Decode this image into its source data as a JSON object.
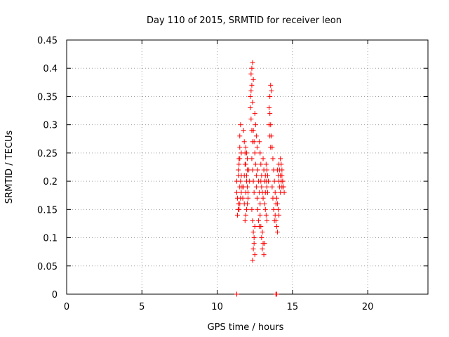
{
  "chart_data": {
    "type": "scatter",
    "title": "Day 110 of 2015, SRMTID for receiver leon",
    "xlabel": "GPS time / hours",
    "ylabel": "SRMTID / TECUs",
    "xlim": [
      0,
      24
    ],
    "ylim": [
      0,
      0.45
    ],
    "xticks": [
      0,
      5,
      10,
      15,
      20
    ],
    "xtick_labels": [
      "0",
      "5",
      "10",
      "15",
      "20"
    ],
    "yticks": [
      0,
      0.05,
      0.1,
      0.15,
      0.2,
      0.25,
      0.3,
      0.35,
      0.4,
      0.45
    ],
    "ytick_labels": [
      "0",
      "0.05",
      "0.1",
      "0.15",
      "0.2",
      "0.25",
      "0.3",
      "0.35",
      "0.4",
      "0.45"
    ],
    "grid": true,
    "marker": "+",
    "color": "#ff0000",
    "series": [
      {
        "name": "SRMTID",
        "x": [
          11.3,
          11.35,
          11.4,
          11.45,
          11.3,
          11.4,
          11.5,
          11.55,
          11.6,
          11.4,
          11.45,
          11.5,
          11.35,
          11.4,
          11.5,
          11.55,
          11.6,
          11.65,
          11.5,
          11.55,
          11.6,
          11.45,
          11.5,
          11.7,
          11.75,
          11.8,
          11.85,
          11.8,
          11.9,
          11.95,
          12.0,
          11.75,
          11.8,
          11.85,
          11.9,
          11.95,
          12.0,
          12.05,
          11.85,
          11.9,
          11.95,
          12.0,
          12.05,
          11.9,
          11.95,
          12.0,
          12.1,
          12.15,
          12.2,
          12.25,
          12.3,
          12.35,
          12.25,
          12.3,
          12.35,
          12.4,
          12.2,
          12.25,
          12.3,
          12.35,
          12.3,
          12.35,
          12.4,
          12.45,
          12.3,
          12.35,
          12.4,
          12.45,
          12.5,
          12.35,
          12.4,
          12.45,
          12.5,
          12.4,
          12.45,
          12.5,
          12.55,
          12.6,
          12.5,
          12.55,
          12.6,
          12.65,
          12.6,
          12.65,
          12.7,
          12.75,
          12.8,
          12.7,
          12.75,
          12.8,
          12.85,
          12.8,
          12.85,
          12.9,
          12.95,
          12.85,
          12.9,
          12.95,
          13.0,
          12.9,
          12.95,
          13.0,
          13.05,
          13.0,
          13.05,
          13.1,
          13.15,
          13.05,
          13.1,
          13.15,
          13.2,
          13.15,
          13.2,
          13.25,
          13.3,
          13.2,
          13.25,
          13.3,
          13.35,
          13.25,
          13.3,
          13.35,
          13.4,
          13.45,
          13.5,
          13.55,
          13.45,
          13.5,
          13.55,
          13.6,
          13.5,
          13.55,
          13.6,
          13.65,
          13.7,
          13.65,
          13.7,
          13.75,
          13.8,
          13.75,
          13.8,
          13.85,
          13.9,
          13.85,
          13.9,
          13.95,
          14.0,
          13.95,
          14.0,
          14.05,
          14.1,
          14.0,
          14.05,
          14.1,
          14.15,
          14.2,
          14.1,
          14.15,
          14.2,
          14.25,
          14.3,
          14.2,
          14.25,
          14.3,
          14.35,
          14.4,
          14.3,
          14.35,
          14.4,
          14.45,
          11.3,
          13.9,
          13.95
        ],
        "y": [
          0.18,
          0.17,
          0.16,
          0.15,
          0.2,
          0.21,
          0.19,
          0.17,
          0.18,
          0.22,
          0.24,
          0.26,
          0.14,
          0.15,
          0.16,
          0.2,
          0.21,
          0.19,
          0.28,
          0.3,
          0.25,
          0.23,
          0.24,
          0.17,
          0.19,
          0.21,
          0.23,
          0.16,
          0.18,
          0.2,
          0.22,
          0.29,
          0.27,
          0.25,
          0.23,
          0.21,
          0.19,
          0.17,
          0.13,
          0.14,
          0.15,
          0.16,
          0.18,
          0.26,
          0.25,
          0.24,
          0.22,
          0.2,
          0.33,
          0.31,
          0.29,
          0.27,
          0.39,
          0.4,
          0.41,
          0.38,
          0.35,
          0.36,
          0.37,
          0.34,
          0.24,
          0.22,
          0.2,
          0.18,
          0.15,
          0.13,
          0.11,
          0.09,
          0.07,
          0.06,
          0.08,
          0.1,
          0.12,
          0.29,
          0.27,
          0.25,
          0.23,
          0.21,
          0.32,
          0.3,
          0.28,
          0.26,
          0.19,
          0.17,
          0.15,
          0.13,
          0.12,
          0.22,
          0.2,
          0.18,
          0.16,
          0.27,
          0.25,
          0.23,
          0.21,
          0.14,
          0.12,
          0.1,
          0.08,
          0.2,
          0.19,
          0.18,
          0.17,
          0.11,
          0.09,
          0.07,
          0.09,
          0.24,
          0.22,
          0.2,
          0.18,
          0.16,
          0.15,
          0.14,
          0.13,
          0.21,
          0.2,
          0.19,
          0.18,
          0.23,
          0.22,
          0.21,
          0.2,
          0.3,
          0.28,
          0.26,
          0.33,
          0.35,
          0.37,
          0.36,
          0.32,
          0.3,
          0.28,
          0.26,
          0.24,
          0.19,
          0.17,
          0.15,
          0.13,
          0.22,
          0.2,
          0.18,
          0.16,
          0.14,
          0.13,
          0.12,
          0.11,
          0.17,
          0.16,
          0.15,
          0.14,
          0.22,
          0.21,
          0.2,
          0.19,
          0.18,
          0.23,
          0.22,
          0.21,
          0.2,
          0.19,
          0.24,
          0.23,
          0.22,
          0.2,
          0.19,
          0.21,
          0.2,
          0.19,
          0.18,
          0.0,
          0.0,
          0.0
        ]
      }
    ]
  }
}
